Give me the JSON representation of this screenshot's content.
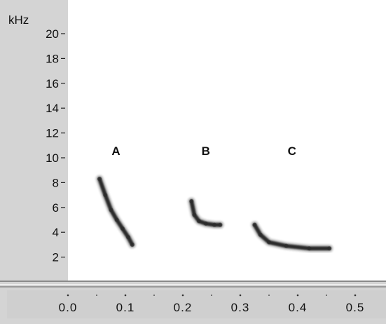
{
  "chart_data": {
    "type": "scatter",
    "title": "",
    "unit_label": "kHz",
    "y_ticks": [
      "2",
      "4",
      "6",
      "8",
      "10",
      "12",
      "14",
      "16",
      "18",
      "20"
    ],
    "x_ticks": [
      "0.0",
      "0.1",
      "0.2",
      "0.3",
      "0.4",
      "0.5"
    ],
    "xlim": [
      0.0,
      0.5
    ],
    "ylim": [
      0,
      20
    ],
    "x_scale": "linear",
    "y_scale": "linear",
    "grid": false,
    "series": [
      {
        "name": "A",
        "x": [
          0.055,
          0.065,
          0.075,
          0.085,
          0.095,
          0.105,
          0.112
        ],
        "y": [
          8.3,
          7.0,
          5.8,
          5.0,
          4.3,
          3.6,
          3.0
        ]
      },
      {
        "name": "B",
        "x": [
          0.215,
          0.22,
          0.228,
          0.24,
          0.255,
          0.265
        ],
        "y": [
          6.5,
          5.4,
          4.9,
          4.7,
          4.6,
          4.6
        ]
      },
      {
        "name": "C",
        "x": [
          0.325,
          0.335,
          0.35,
          0.38,
          0.42,
          0.455
        ],
        "y": [
          4.6,
          3.8,
          3.2,
          2.9,
          2.7,
          2.7
        ]
      }
    ]
  },
  "colors": {
    "trace": "#2a2a2a",
    "panel": "#d4d4d4",
    "plot_bg": "#ffffff"
  }
}
